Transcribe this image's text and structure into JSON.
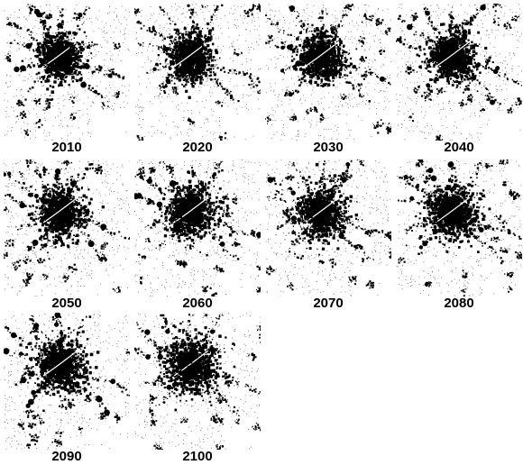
{
  "figure": {
    "panels": [
      {
        "year": "2010"
      },
      {
        "year": "2020"
      },
      {
        "year": "2030"
      },
      {
        "year": "2040"
      },
      {
        "year": "2050"
      },
      {
        "year": "2060"
      },
      {
        "year": "2070"
      },
      {
        "year": "2080"
      },
      {
        "year": "2090"
      },
      {
        "year": "2100"
      }
    ],
    "colors": {
      "urban": "#000000",
      "background": "#ffffff",
      "speckle": "#6e6e6e"
    }
  }
}
